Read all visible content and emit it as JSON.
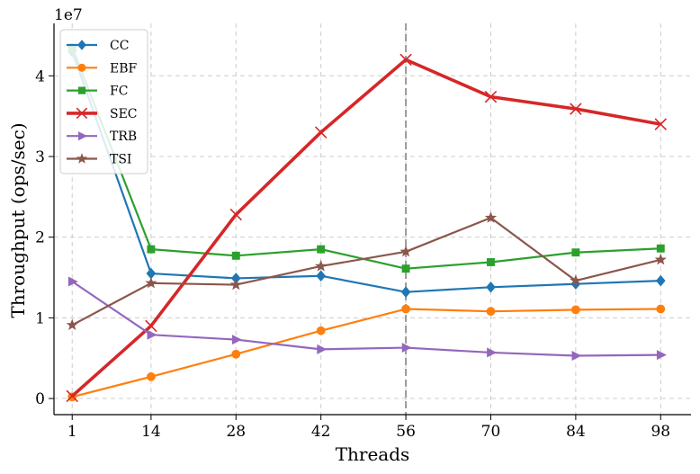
{
  "chart_data": {
    "type": "line",
    "title": "",
    "xlabel": "Threads",
    "ylabel": "Throughput (ops/sec)",
    "y_offset_label": "1e7",
    "y_scale": 10000000,
    "categories": [
      "1",
      "14",
      "28",
      "42",
      "56",
      "70",
      "84",
      "98"
    ],
    "x": [
      1,
      14,
      28,
      42,
      56,
      70,
      84,
      98
    ],
    "xlim": [
      -2,
      103
    ],
    "ylim": [
      -0.2,
      4.65
    ],
    "yticks": [
      0,
      1,
      2,
      3,
      4
    ],
    "ytick_labels": [
      "0",
      "1",
      "2",
      "3",
      "4"
    ],
    "grid": true,
    "vline_x": 56,
    "legend_position": "top-left",
    "series": [
      {
        "name": "CC",
        "color": "#1f77b4",
        "marker": "diamond",
        "linewidth": 2.2,
        "values": [
          4.3,
          1.55,
          1.49,
          1.52,
          1.32,
          1.38,
          1.42,
          1.46
        ]
      },
      {
        "name": "EBF",
        "color": "#ff7f0e",
        "marker": "circle",
        "linewidth": 2.2,
        "values": [
          0.02,
          0.27,
          0.55,
          0.84,
          1.11,
          1.08,
          1.1,
          1.11
        ]
      },
      {
        "name": "FC",
        "color": "#2ca02c",
        "marker": "square",
        "linewidth": 2.2,
        "values": [
          4.35,
          1.85,
          1.77,
          1.85,
          1.61,
          1.69,
          1.81,
          1.86
        ]
      },
      {
        "name": "SEC",
        "color": "#d62728",
        "marker": "x",
        "linewidth": 3.6,
        "values": [
          0.03,
          0.9,
          2.28,
          3.3,
          4.2,
          3.74,
          3.59,
          3.4
        ]
      },
      {
        "name": "TRB",
        "color": "#9467bd",
        "marker": "triangle-right",
        "linewidth": 2.2,
        "values": [
          1.45,
          0.79,
          0.73,
          0.61,
          0.63,
          0.57,
          0.53,
          0.54
        ]
      },
      {
        "name": "TSI",
        "color": "#8c564b",
        "marker": "star",
        "linewidth": 2.2,
        "values": [
          0.91,
          1.43,
          1.41,
          1.64,
          1.82,
          2.24,
          1.46,
          1.72
        ]
      }
    ]
  }
}
